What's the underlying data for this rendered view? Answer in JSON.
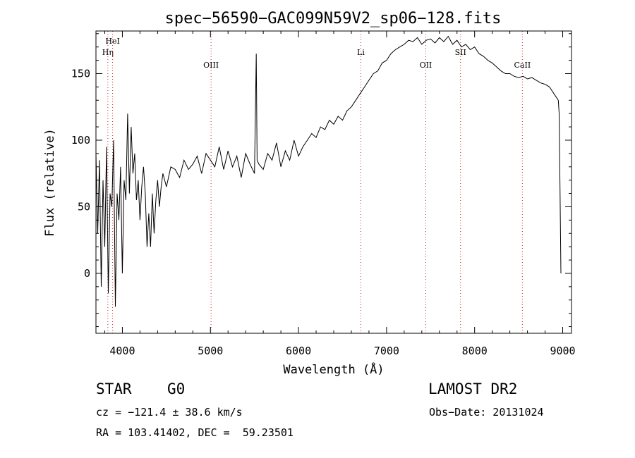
{
  "chart_data": {
    "type": "line",
    "title": "spec−56590−GAC099N59V2_sp06−128.fits",
    "xlabel": "Wavelength (Å)",
    "ylabel": "Flux (relative)",
    "xlim": [
      3700,
      9100
    ],
    "ylim": [
      -45,
      182
    ],
    "xticks": [
      4000,
      5000,
      6000,
      7000,
      8000,
      9000
    ],
    "yticks": [
      0,
      50,
      100,
      150
    ],
    "grid": false,
    "series": [
      {
        "x": [
          3700,
          3720,
          3740,
          3760,
          3780,
          3800,
          3820,
          3840,
          3860,
          3880,
          3900,
          3920,
          3940,
          3960,
          3980,
          4000,
          4020,
          4040,
          4060,
          4080,
          4100,
          4120,
          4140,
          4160,
          4180,
          4200,
          4220,
          4240,
          4260,
          4280,
          4300,
          4320,
          4340,
          4360,
          4380,
          4400,
          4420,
          4440,
          4460,
          4480,
          4500,
          4550,
          4600,
          4650,
          4700,
          4750,
          4800,
          4850,
          4900,
          4950,
          5000,
          5050,
          5100,
          5150,
          5200,
          5250,
          5300,
          5350,
          5400,
          5450,
          5500,
          5520,
          5530,
          5550,
          5600,
          5650,
          5700,
          5750,
          5800,
          5850,
          5900,
          5950,
          6000,
          6050,
          6100,
          6150,
          6200,
          6250,
          6300,
          6350,
          6400,
          6450,
          6500,
          6550,
          6600,
          6650,
          6700,
          6750,
          6800,
          6850,
          6900,
          6950,
          7000,
          7050,
          7100,
          7150,
          7200,
          7250,
          7300,
          7350,
          7400,
          7450,
          7500,
          7550,
          7600,
          7650,
          7700,
          7750,
          7800,
          7850,
          7900,
          7950,
          8000,
          8050,
          8100,
          8150,
          8200,
          8250,
          8300,
          8350,
          8400,
          8450,
          8500,
          8550,
          8600,
          8650,
          8700,
          8750,
          8800,
          8850,
          8900,
          8950,
          8960,
          8970,
          8980
        ],
        "y": [
          90,
          30,
          85,
          -10,
          70,
          20,
          95,
          -15,
          60,
          50,
          100,
          -25,
          60,
          40,
          80,
          0,
          70,
          55,
          120,
          60,
          110,
          75,
          90,
          55,
          70,
          40,
          65,
          80,
          60,
          20,
          45,
          20,
          60,
          30,
          55,
          70,
          50,
          65,
          75,
          70,
          65,
          80,
          78,
          72,
          85,
          78,
          82,
          88,
          75,
          90,
          85,
          80,
          95,
          78,
          92,
          80,
          88,
          72,
          90,
          82,
          75,
          165,
          85,
          82,
          78,
          90,
          85,
          98,
          80,
          92,
          85,
          100,
          88,
          95,
          100,
          105,
          102,
          110,
          108,
          115,
          112,
          118,
          115,
          122,
          125,
          130,
          135,
          140,
          145,
          150,
          152,
          158,
          160,
          165,
          168,
          170,
          172,
          175,
          174,
          177,
          172,
          175,
          176,
          173,
          177,
          174,
          178,
          172,
          175,
          170,
          172,
          168,
          170,
          165,
          163,
          160,
          158,
          155,
          152,
          150,
          150,
          148,
          147,
          148,
          146,
          147,
          145,
          143,
          142,
          140,
          135,
          130,
          120,
          60,
          0
        ]
      }
    ],
    "line_markers": [
      {
        "label": "Hη",
        "x": 3835
      },
      {
        "label": "HeI",
        "x": 3889
      },
      {
        "label": "OIII",
        "x": 5007
      },
      {
        "label": "Li",
        "x": 6708
      },
      {
        "label": "OII",
        "x": 7445
      },
      {
        "label": "SII",
        "x": 7840
      },
      {
        "label": "CaII",
        "x": 8542
      }
    ]
  },
  "footer": {
    "object_type": "STAR",
    "subclass": "G0",
    "survey": "LAMOST DR2",
    "velocity": "cz = −121.4 ± 38.6 km/s",
    "obs_date": "Obs−Date: 20131024",
    "coords": "RA = 103.41402, DEC =  59.23501"
  }
}
